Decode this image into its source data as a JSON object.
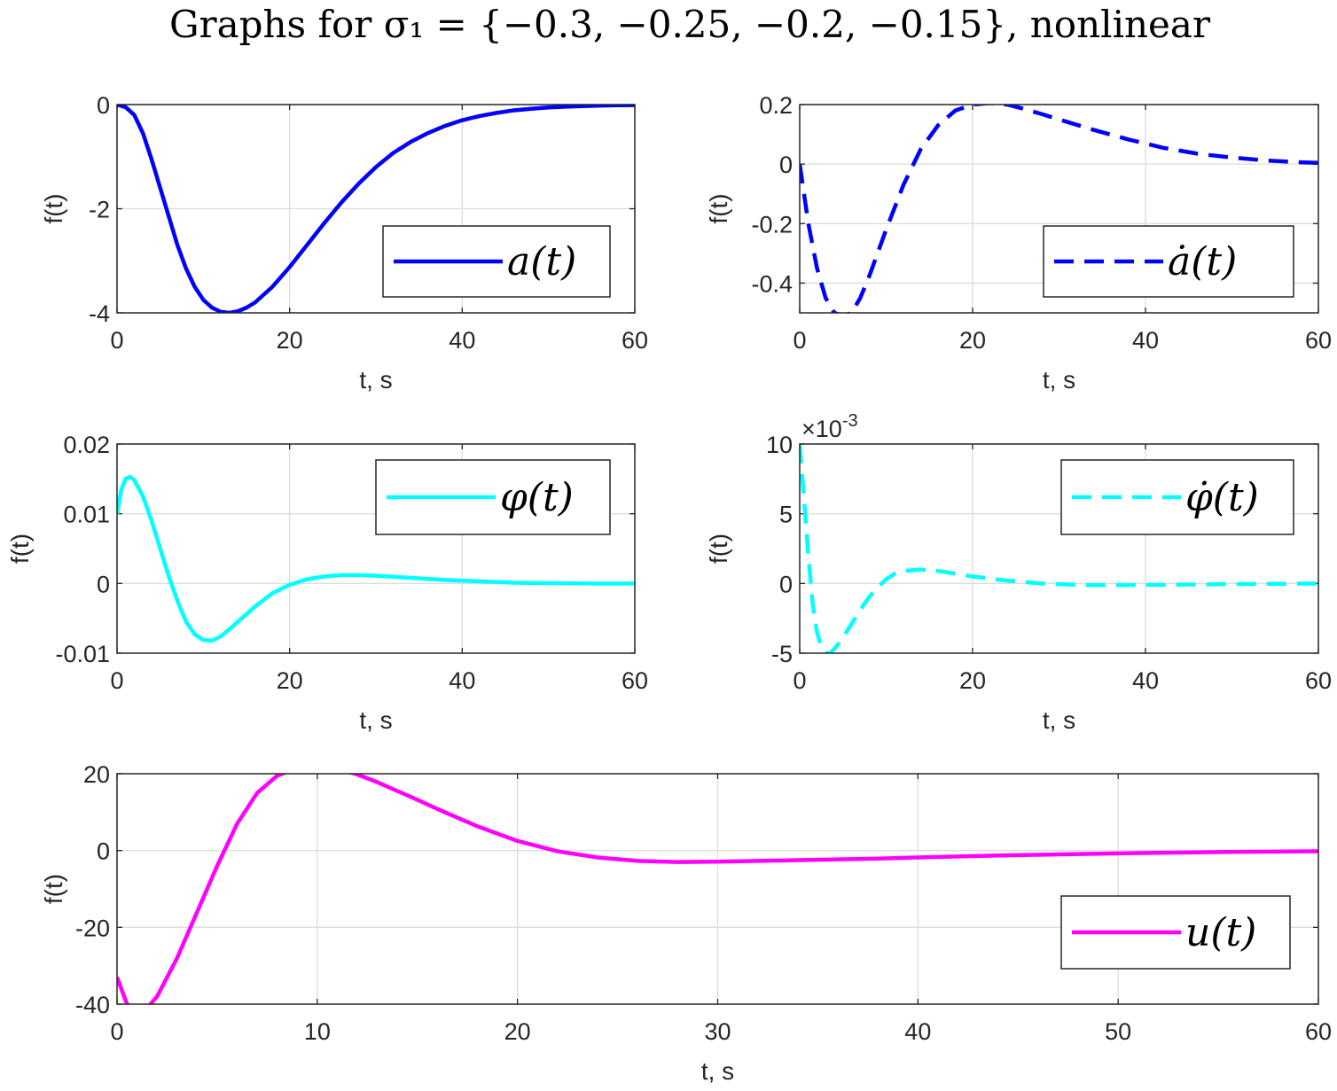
{
  "figure": {
    "title": "Graphs for σ₁ = {−0.3, −0.25, −0.2, −0.15}, nonlinear"
  },
  "chart_data": [
    {
      "id": "a",
      "type": "line",
      "xlabel": "t, s",
      "ylabel": "f(t)",
      "xlim": [
        0,
        60
      ],
      "ylim": [
        -4,
        0
      ],
      "xticks": [
        0,
        20,
        40,
        60
      ],
      "yticks": [
        0,
        -2,
        -4
      ],
      "ytick_labels": [
        "0",
        "-2",
        "-4"
      ],
      "grid": true,
      "legend_position": "bottom-right",
      "series": [
        {
          "name": "a(t)",
          "color": "#0000ff",
          "style": "solid",
          "x": [
            0,
            1,
            2,
            3,
            4,
            5,
            6,
            7,
            8,
            9,
            10,
            11,
            12,
            13,
            14,
            15,
            16,
            18,
            20,
            22,
            24,
            26,
            28,
            30,
            32,
            34,
            36,
            38,
            40,
            42,
            44,
            46,
            48,
            50,
            52,
            54,
            56,
            58,
            60
          ],
          "y": [
            0,
            -0.05,
            -0.2,
            -0.55,
            -1.05,
            -1.6,
            -2.15,
            -2.7,
            -3.15,
            -3.5,
            -3.75,
            -3.9,
            -3.98,
            -4.0,
            -3.97,
            -3.9,
            -3.8,
            -3.5,
            -3.12,
            -2.7,
            -2.28,
            -1.88,
            -1.52,
            -1.2,
            -0.93,
            -0.72,
            -0.55,
            -0.41,
            -0.3,
            -0.22,
            -0.16,
            -0.11,
            -0.08,
            -0.055,
            -0.04,
            -0.03,
            -0.02,
            -0.012,
            -0.01
          ]
        }
      ]
    },
    {
      "id": "adot",
      "type": "line",
      "xlabel": "t, s",
      "ylabel": "f(t)",
      "xlim": [
        0,
        60
      ],
      "ylim": [
        -0.5,
        0.2
      ],
      "xticks": [
        0,
        20,
        40,
        60
      ],
      "yticks": [
        0.2,
        0,
        -0.2,
        -0.4
      ],
      "ytick_labels": [
        "0.2",
        "0",
        "-0.2",
        "-0.4"
      ],
      "grid": true,
      "legend_position": "bottom-right",
      "series": [
        {
          "name": "ȧ(t)",
          "color": "#0000ff",
          "style": "dashed",
          "x": [
            0,
            1,
            2,
            3,
            4,
            5,
            6,
            7,
            8,
            9,
            10,
            12,
            14,
            16,
            18,
            20,
            22,
            24,
            26,
            28,
            30,
            34,
            38,
            42,
            46,
            50,
            54,
            58,
            60
          ],
          "y": [
            0,
            -0.2,
            -0.35,
            -0.45,
            -0.5,
            -0.51,
            -0.5,
            -0.45,
            -0.38,
            -0.3,
            -0.22,
            -0.07,
            0.05,
            0.13,
            0.18,
            0.2,
            0.205,
            0.2,
            0.185,
            0.168,
            0.15,
            0.115,
            0.083,
            0.055,
            0.035,
            0.022,
            0.012,
            0.006,
            0.004
          ]
        }
      ]
    },
    {
      "id": "phi",
      "type": "line",
      "xlabel": "t, s",
      "ylabel": "f(t)",
      "xlim": [
        0,
        60
      ],
      "ylim": [
        -0.01,
        0.02
      ],
      "xticks": [
        0,
        20,
        40,
        60
      ],
      "yticks": [
        0.02,
        0.01,
        0,
        -0.01
      ],
      "ytick_labels": [
        "0.02",
        "0.01",
        "0",
        "-0.01"
      ],
      "grid": true,
      "legend_position": "top-right",
      "series": [
        {
          "name": "φ(t)",
          "color": "#00ffff",
          "style": "solid",
          "x": [
            0,
            0.5,
            1,
            1.5,
            2,
            3,
            4,
            5,
            6,
            7,
            8,
            9,
            10,
            11,
            12,
            13,
            14,
            16,
            18,
            20,
            22,
            24,
            26,
            28,
            30,
            34,
            38,
            42,
            46,
            50,
            55,
            60
          ],
          "y": [
            0.01,
            0.0135,
            0.015,
            0.0153,
            0.0148,
            0.0125,
            0.009,
            0.005,
            0.001,
            -0.0025,
            -0.0055,
            -0.0073,
            -0.0081,
            -0.0082,
            -0.0076,
            -0.0066,
            -0.0055,
            -0.0033,
            -0.0014,
            -0.0002,
            0.0006,
            0.001,
            0.0012,
            0.0012,
            0.0011,
            0.0008,
            0.0005,
            0.0003,
            0.0001,
            5e-05,
            0,
            0
          ]
        }
      ]
    },
    {
      "id": "phidot",
      "type": "line",
      "xlabel": "t, s",
      "ylabel": "f(t)",
      "exponent_label": "×10",
      "exponent_power": "-3",
      "xlim": [
        0,
        60
      ],
      "ylim": [
        -5,
        10
      ],
      "xticks": [
        0,
        20,
        40,
        60
      ],
      "yticks": [
        10,
        5,
        0,
        -5
      ],
      "ytick_labels": [
        "10",
        "5",
        "0",
        "-5"
      ],
      "grid": true,
      "legend_position": "top-right",
      "series": [
        {
          "name": "φ̇(t)",
          "color": "#00ffff",
          "style": "dashed",
          "x": [
            0,
            0.5,
            1,
            1.5,
            2,
            2.5,
            3,
            3.5,
            4,
            5,
            6,
            7,
            8,
            9,
            10,
            11,
            12,
            14,
            16,
            18,
            20,
            24,
            28,
            32,
            36,
            40,
            50,
            60
          ],
          "y": [
            10,
            6,
            2,
            -1.5,
            -3.5,
            -4.6,
            -5.0,
            -5.0,
            -4.7,
            -3.9,
            -2.9,
            -1.9,
            -1.0,
            -0.3,
            0.3,
            0.7,
            0.9,
            1.0,
            0.9,
            0.7,
            0.5,
            0.2,
            0.0,
            -0.1,
            -0.12,
            -0.1,
            -0.05,
            0
          ]
        }
      ]
    },
    {
      "id": "u",
      "type": "line",
      "xlabel": "t, s",
      "ylabel": "f(t)",
      "xlim": [
        0,
        60
      ],
      "ylim": [
        -40,
        20
      ],
      "xticks": [
        0,
        10,
        20,
        30,
        40,
        50,
        60
      ],
      "yticks": [
        20,
        0,
        -20,
        -40
      ],
      "ytick_labels": [
        "20",
        "0",
        "-20",
        "-40"
      ],
      "grid": true,
      "legend_position": "bottom-right",
      "series": [
        {
          "name": "u(t)",
          "color": "#ff00ff",
          "style": "solid",
          "x": [
            0,
            0.5,
            1,
            1.5,
            2,
            3,
            4,
            5,
            6,
            7,
            8,
            9,
            10,
            11,
            12,
            13,
            14,
            15,
            16,
            18,
            20,
            22,
            24,
            26,
            28,
            30,
            32,
            34,
            36,
            38,
            40,
            44,
            48,
            52,
            56,
            60
          ],
          "y": [
            -33,
            -40,
            -42,
            -41,
            -38,
            -28,
            -16,
            -4,
            7,
            15,
            19.5,
            21.5,
            22,
            21.3,
            19.8,
            17.8,
            15.5,
            13.2,
            10.8,
            6.3,
            2.5,
            -0.2,
            -1.8,
            -2.7,
            -3.0,
            -2.9,
            -2.7,
            -2.5,
            -2.3,
            -2.1,
            -1.8,
            -1.3,
            -0.9,
            -0.6,
            -0.35,
            -0.2
          ]
        }
      ]
    }
  ]
}
